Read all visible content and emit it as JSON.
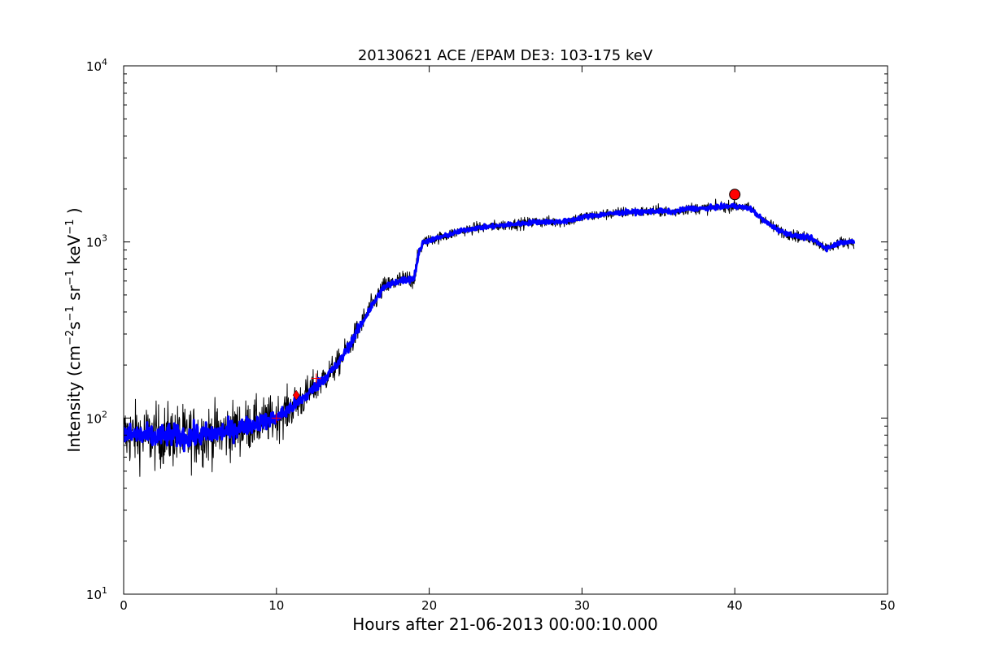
{
  "chart_data": {
    "type": "line",
    "title": "20130621 ACE /EPAM DE3: 103-175 keV",
    "xlabel": "Hours after 21-06-2013 00:00:10.000",
    "ylabel_parts": {
      "prefix": "Intensity (cm",
      "exp1": "−2",
      "mid1": "s",
      "exp2": "−1",
      "mid2": " sr",
      "exp3": "−1",
      "mid3": " keV",
      "exp4": "−1",
      "suffix": " )"
    },
    "xlim": [
      0,
      50
    ],
    "ylim": [
      10,
      10000
    ],
    "yscale": "log",
    "grid": false,
    "x_ticks": [
      {
        "value": 0,
        "label": "0"
      },
      {
        "value": 10,
        "label": "10"
      },
      {
        "value": 20,
        "label": "20"
      },
      {
        "value": 30,
        "label": "30"
      },
      {
        "value": 40,
        "label": "40"
      },
      {
        "value": 50,
        "label": "50"
      }
    ],
    "y_ticks": [
      {
        "value": 10,
        "base": "10",
        "exp": "1"
      },
      {
        "value": 100,
        "base": "10",
        "exp": "2"
      },
      {
        "value": 1000,
        "base": "10",
        "exp": "3"
      },
      {
        "value": 10000,
        "base": "10",
        "exp": "4"
      }
    ],
    "series": [
      {
        "role": "raw",
        "color": "#000000",
        "x": [
          0,
          1,
          2,
          3,
          4,
          5,
          6,
          7,
          8,
          9,
          10,
          11,
          12,
          13,
          14,
          15,
          16,
          17,
          18,
          19,
          19.3,
          19.6,
          20,
          21,
          22,
          23,
          24,
          25,
          26,
          27,
          28,
          29,
          30,
          31,
          32,
          33,
          34,
          35,
          36,
          37,
          38,
          39,
          40,
          41,
          42,
          43,
          44,
          45,
          46,
          47,
          47.8
        ],
        "y": [
          80,
          80,
          78,
          80,
          78,
          80,
          82,
          85,
          90,
          95,
          100,
          115,
          135,
          165,
          200,
          280,
          400,
          550,
          600,
          620,
          850,
          1000,
          1020,
          1080,
          1150,
          1200,
          1220,
          1250,
          1270,
          1300,
          1300,
          1310,
          1380,
          1420,
          1450,
          1480,
          1480,
          1500,
          1480,
          1550,
          1550,
          1580,
          1600,
          1550,
          1300,
          1150,
          1080,
          1050,
          920,
          1000,
          1000
        ],
        "noise": [
          0.28,
          0.28,
          0.28,
          0.28,
          0.28,
          0.27,
          0.26,
          0.25,
          0.23,
          0.21,
          0.2,
          0.18,
          0.16,
          0.14,
          0.12,
          0.11,
          0.1,
          0.09,
          0.09,
          0.09,
          0.07,
          0.06,
          0.05,
          0.05,
          0.05,
          0.05,
          0.05,
          0.05,
          0.05,
          0.05,
          0.05,
          0.05,
          0.05,
          0.05,
          0.05,
          0.05,
          0.05,
          0.05,
          0.05,
          0.05,
          0.05,
          0.05,
          0.05,
          0.05,
          0.05,
          0.05,
          0.05,
          0.05,
          0.05,
          0.05,
          0.05
        ]
      },
      {
        "role": "smoothed",
        "color": "#0000ff",
        "x": [
          0,
          1,
          2,
          3,
          4,
          5,
          6,
          7,
          8,
          9,
          10,
          11,
          12,
          13,
          14,
          15,
          16,
          17,
          18,
          19,
          19.3,
          19.6,
          20,
          21,
          22,
          23,
          24,
          25,
          26,
          27,
          28,
          29,
          30,
          31,
          32,
          33,
          34,
          35,
          36,
          37,
          38,
          39,
          40,
          41,
          42,
          43,
          44,
          45,
          46,
          47,
          47.8
        ],
        "y": [
          80,
          80,
          78,
          80,
          78,
          80,
          82,
          85,
          90,
          95,
          100,
          115,
          135,
          165,
          200,
          280,
          400,
          550,
          600,
          620,
          850,
          1000,
          1020,
          1080,
          1150,
          1200,
          1220,
          1250,
          1270,
          1300,
          1300,
          1310,
          1380,
          1420,
          1450,
          1480,
          1480,
          1500,
          1480,
          1550,
          1550,
          1580,
          1600,
          1550,
          1300,
          1150,
          1080,
          1050,
          920,
          1000,
          1000
        ],
        "noise": [
          0.1,
          0.1,
          0.1,
          0.1,
          0.1,
          0.1,
          0.09,
          0.09,
          0.08,
          0.07,
          0.07,
          0.06,
          0.05,
          0.05,
          0.04,
          0.04,
          0.04,
          0.03,
          0.03,
          0.03,
          0.03,
          0.02,
          0.02,
          0.02,
          0.02,
          0.02,
          0.02,
          0.02,
          0.02,
          0.02,
          0.02,
          0.02,
          0.02,
          0.02,
          0.02,
          0.02,
          0.02,
          0.02,
          0.02,
          0.02,
          0.02,
          0.02,
          0.02,
          0.02,
          0.02,
          0.02,
          0.02,
          0.02,
          0.02,
          0.02,
          0.02
        ]
      }
    ],
    "markers": [
      {
        "shape": "diamond",
        "x": 11.3,
        "y": 135,
        "color": "#ff0000"
      },
      {
        "shape": "circle",
        "x": 40.0,
        "y": 1860,
        "color": "#ff0000"
      },
      {
        "shape": "plus",
        "x": 10.0,
        "y": 100,
        "color": "#ff0000"
      },
      {
        "shape": "plus",
        "x": 12.6,
        "y": 168,
        "color": "#ff0000"
      }
    ]
  }
}
